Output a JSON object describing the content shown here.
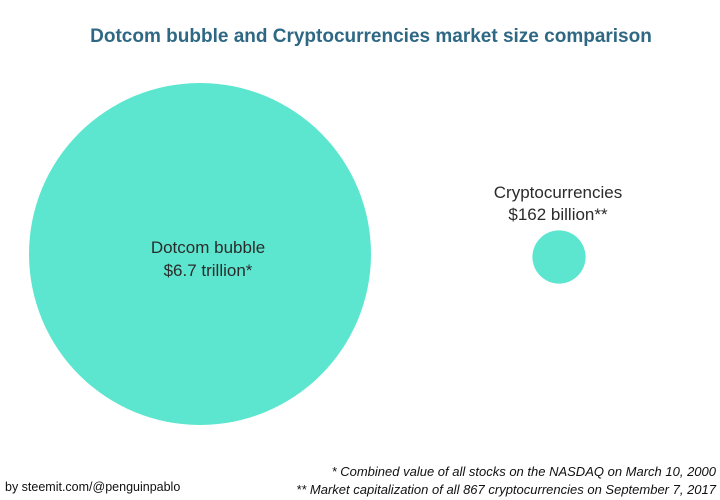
{
  "chart_data": {
    "type": "bubble",
    "title": "Dotcom bubble and Cryptocurrencies market size comparison",
    "unit": "USD",
    "bubbles": [
      {
        "id": "dotcom",
        "name": "Dotcom bubble",
        "value": 6700000000000,
        "value_label": "$6.7 trillion*"
      },
      {
        "id": "crypto",
        "name": "Cryptocurrencies",
        "value": 162000000000,
        "value_label": "$162 billion**"
      }
    ],
    "colors": {
      "bubble": "#5ce6cf",
      "title": "#2e6884",
      "label": "#2b2b2b"
    }
  },
  "footnotes": {
    "note1": "* Combined value of all stocks on the NASDAQ on March 10, 2000",
    "note2": "** Market capitalization of all 867 cryptocurrencies on September 7, 2017"
  },
  "credit": "by steemit.com/@penguinpablo"
}
